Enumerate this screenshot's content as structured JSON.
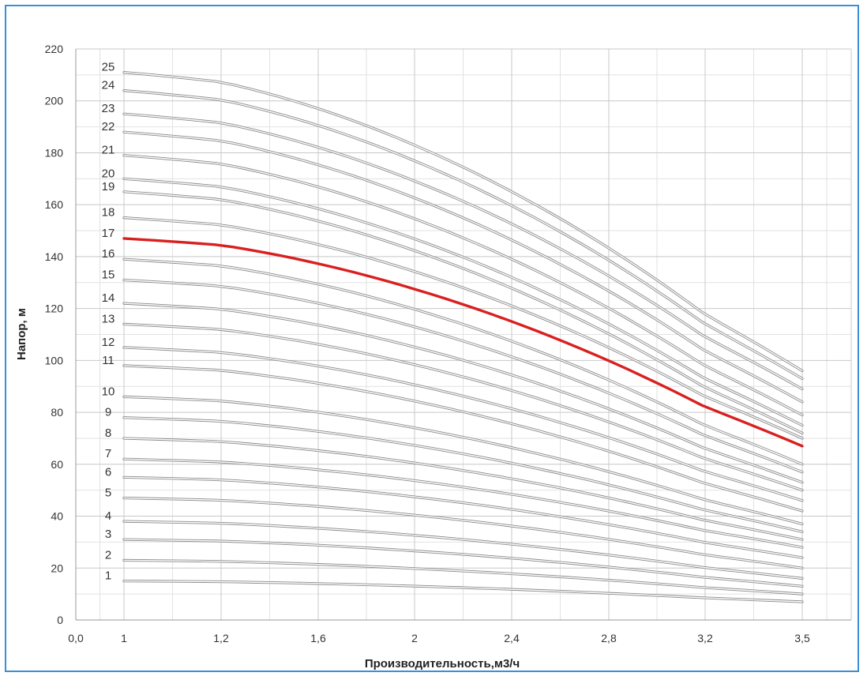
{
  "chart_data": {
    "type": "line",
    "title": "",
    "xlabel": "Производительность,м3/ч",
    "ylabel": "Напор, м",
    "ylim": [
      0,
      220
    ],
    "y_ticks": [
      "0",
      "20",
      "40",
      "60",
      "80",
      "100",
      "120",
      "140",
      "160",
      "180",
      "200",
      "220"
    ],
    "x_tick_labels": [
      "0,0",
      "1",
      "1,2",
      "1,6",
      "2",
      "2,4",
      "2,8",
      "3,2",
      "3,5"
    ],
    "grid": true,
    "highlight_series": "17",
    "colors": {
      "curve": "#8a8a8a",
      "highlight": "#d92020",
      "grid": "#c8c8c8",
      "frame": "#3b8fd6"
    },
    "series": [
      {
        "name": "1",
        "x": [
          1,
          3.5
        ],
        "values": [
          15,
          7
        ]
      },
      {
        "name": "2",
        "x": [
          1,
          3.5
        ],
        "values": [
          23,
          10
        ]
      },
      {
        "name": "3",
        "x": [
          1,
          3.5
        ],
        "values": [
          31,
          13
        ]
      },
      {
        "name": "4",
        "x": [
          1,
          3.5
        ],
        "values": [
          38,
          16
        ]
      },
      {
        "name": "5",
        "x": [
          1,
          3.5
        ],
        "values": [
          47,
          20
        ]
      },
      {
        "name": "6",
        "x": [
          1,
          3.5
        ],
        "values": [
          55,
          24
        ]
      },
      {
        "name": "7",
        "x": [
          1,
          3.5
        ],
        "values": [
          62,
          28
        ]
      },
      {
        "name": "8",
        "x": [
          1,
          3.5
        ],
        "values": [
          70,
          31
        ]
      },
      {
        "name": "9",
        "x": [
          1,
          3.5
        ],
        "values": [
          78,
          34
        ]
      },
      {
        "name": "10",
        "x": [
          1,
          3.5
        ],
        "values": [
          86,
          37
        ]
      },
      {
        "name": "11",
        "x": [
          1,
          3.5
        ],
        "values": [
          98,
          42
        ]
      },
      {
        "name": "12",
        "x": [
          1,
          3.5
        ],
        "values": [
          105,
          46
        ]
      },
      {
        "name": "13",
        "x": [
          1,
          3.5
        ],
        "values": [
          114,
          50
        ]
      },
      {
        "name": "14",
        "x": [
          1,
          3.5
        ],
        "values": [
          122,
          53
        ]
      },
      {
        "name": "15",
        "x": [
          1,
          3.5
        ],
        "values": [
          131,
          57
        ]
      },
      {
        "name": "16",
        "x": [
          1,
          3.5
        ],
        "values": [
          139,
          60
        ]
      },
      {
        "name": "17",
        "x": [
          1,
          3.5
        ],
        "values": [
          147,
          67
        ]
      },
      {
        "name": "18",
        "x": [
          1,
          3.5
        ],
        "values": [
          155,
          70
        ]
      },
      {
        "name": "19",
        "x": [
          1,
          3.5
        ],
        "values": [
          165,
          72
        ]
      },
      {
        "name": "20",
        "x": [
          1,
          3.5
        ],
        "values": [
          170,
          75
        ]
      },
      {
        "name": "21",
        "x": [
          1,
          3.5
        ],
        "values": [
          179,
          79
        ]
      },
      {
        "name": "22",
        "x": [
          1,
          3.5
        ],
        "values": [
          188,
          84
        ]
      },
      {
        "name": "23",
        "x": [
          1,
          3.5
        ],
        "values": [
          195,
          89
        ]
      },
      {
        "name": "24",
        "x": [
          1,
          3.5
        ],
        "values": [
          204,
          93
        ]
      },
      {
        "name": "25",
        "x": [
          1,
          3.5
        ],
        "values": [
          211,
          96
        ]
      }
    ]
  }
}
